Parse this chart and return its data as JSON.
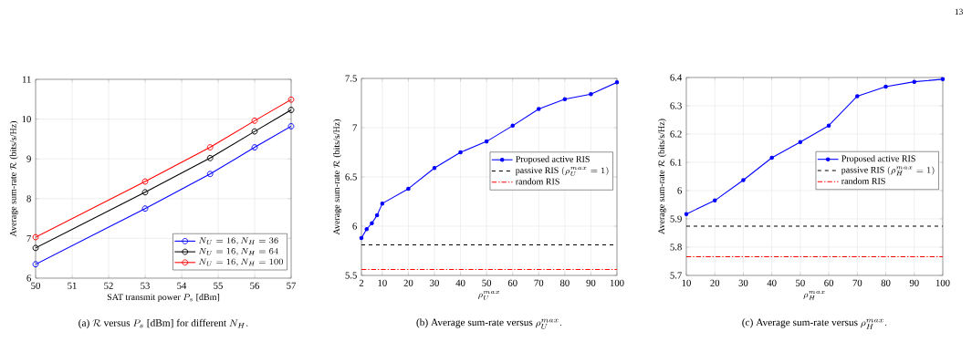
{
  "chart_data": [
    {
      "type": "line",
      "xlabel": "\\text{SAT transmit power } P_s \\text{ [dBm]}",
      "ylabel": "\\text{Average sum-rate } \\mathcal{R} \\text{ (bits/s/Hz)}",
      "x": [
        50,
        53,
        54.78,
        56,
        57
      ],
      "series": [
        {
          "name": "N_U = 16, N_H = 36",
          "color": "#0000ff",
          "values": [
            6.35,
            7.75,
            8.62,
            9.29,
            9.82
          ]
        },
        {
          "name": "N_U = 16, N_H = 64",
          "color": "#000000",
          "values": [
            6.76,
            8.16,
            9.02,
            9.69,
            10.23
          ]
        },
        {
          "name": "N_U = 16, N_H = 100",
          "color": "#ff0000",
          "values": [
            7.03,
            8.43,
            9.29,
            9.96,
            10.49
          ]
        }
      ],
      "xlim": [
        50,
        57
      ],
      "xticks": [
        50,
        51,
        52,
        53,
        54,
        55,
        56,
        57
      ],
      "ylim": [
        6,
        11
      ],
      "yticks": [
        6,
        7,
        8,
        9,
        10,
        11
      ],
      "grid": true,
      "legend": "bottom right",
      "marker": "circle",
      "line_style": "solid",
      "annotations": [
        "\\text{(a) } \\mathcal{R} \\text{ versus } P_s \\text{ [dBm] for different } N_H."
      ]
    },
    {
      "type": "line",
      "xlabel": "\\rho_U^{max}",
      "ylabel": "\\text{Average sum-rate } \\mathcal{R} \\text{ (bits/s/Hz)}",
      "x": [
        2,
        4,
        6,
        8,
        10,
        20,
        30,
        40,
        50,
        60,
        70,
        80,
        90,
        100
      ],
      "series": [
        {
          "name": "\\text{Proposed active RIS}",
          "color": "#0000ff",
          "marker": "circle",
          "line_style": "solid",
          "values": [
            5.88,
            5.97,
            6.03,
            6.11,
            6.23,
            6.38,
            6.59,
            6.75,
            6.86,
            7.02,
            7.19,
            7.29,
            7.34,
            7.46
          ]
        },
        {
          "name": "\\text{passive RIS } (\\rho_U^{max} = 1)",
          "color": "#000000",
          "marker": "none",
          "line_style": "dashed",
          "x": [
            2,
            100
          ],
          "values": [
            5.81,
            5.81
          ]
        },
        {
          "name": "\\text{random RIS}",
          "color": "#ff0000",
          "marker": "none",
          "line_style": "dashdot",
          "x": [
            2,
            100
          ],
          "values": [
            5.56,
            5.56
          ]
        }
      ],
      "xlim": [
        2,
        100
      ],
      "xticks": [
        2,
        10,
        20,
        30,
        40,
        50,
        60,
        70,
        80,
        90,
        100
      ],
      "ylim": [
        5.5,
        7.5
      ],
      "yticks": [
        5.5,
        6,
        6.5,
        7,
        7.5
      ],
      "grid": true,
      "legend": "right",
      "annotations": [
        "\\text{(b) Average sum-rate versus } \\rho_U^{max}."
      ]
    },
    {
      "type": "line",
      "xlabel": "\\rho_H^{max}",
      "ylabel": "\\text{Average sum-rate } \\mathcal{R} \\text{ (bits/s/Hz)}",
      "x": [
        10,
        20,
        30,
        40,
        50,
        60,
        70,
        80,
        90,
        100
      ],
      "series": [
        {
          "name": "\\text{Proposed active RIS}",
          "color": "#0000ff",
          "marker": "circle",
          "line_style": "solid",
          "values": [
            5.917,
            5.965,
            6.037,
            6.116,
            6.172,
            6.23,
            6.334,
            6.368,
            6.385,
            6.394
          ]
        },
        {
          "name": "\\text{passive RIS } (\\rho_H^{max} = 1)",
          "color": "#000000",
          "marker": "none",
          "line_style": "dashed",
          "x": [
            10,
            100
          ],
          "values": [
            5.874,
            5.874
          ]
        },
        {
          "name": "\\text{random RIS}",
          "color": "#ff0000",
          "marker": "none",
          "line_style": "dashdot",
          "x": [
            10,
            100
          ],
          "values": [
            5.766,
            5.766
          ]
        }
      ],
      "xlim": [
        10,
        100
      ],
      "xticks": [
        10,
        20,
        30,
        40,
        50,
        60,
        70,
        80,
        90,
        100
      ],
      "ylim": [
        5.7,
        6.4
      ],
      "yticks": [
        5.7,
        5.8,
        5.9,
        6,
        6.1,
        6.2,
        6.3,
        6.4
      ],
      "grid": true,
      "legend": "right",
      "annotations": [
        "\\text{(c) Average sum-rate versus } \\rho_H^{max}.",
        "13"
      ]
    }
  ]
}
